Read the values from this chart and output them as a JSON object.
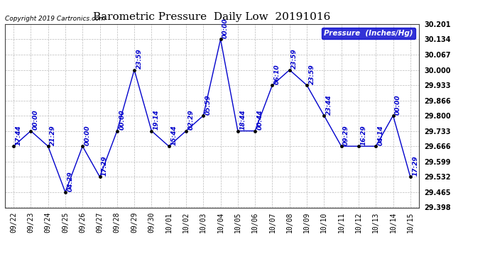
{
  "title": "Barometric Pressure  Daily Low  20191016",
  "copyright": "Copyright 2019 Cartronics.com",
  "legend_label": "Pressure  (Inches/Hg)",
  "background_color": "#ffffff",
  "plot_bg_color": "#ffffff",
  "line_color": "#0000CC",
  "marker_color": "#000000",
  "grid_color": "#bbbbbb",
  "dates": [
    "09/22",
    "09/23",
    "09/24",
    "09/25",
    "09/26",
    "09/27",
    "09/28",
    "09/29",
    "09/30",
    "10/01",
    "10/02",
    "10/03",
    "10/04",
    "10/05",
    "10/06",
    "10/07",
    "10/08",
    "10/09",
    "10/10",
    "10/11",
    "10/12",
    "10/13",
    "10/14",
    "10/15"
  ],
  "values": [
    29.666,
    29.733,
    29.666,
    29.465,
    29.666,
    29.532,
    29.733,
    30.0,
    29.733,
    29.666,
    29.733,
    29.8,
    30.134,
    29.733,
    29.733,
    29.933,
    30.0,
    29.933,
    29.8,
    29.666,
    29.666,
    29.666,
    29.8,
    29.532
  ],
  "times": [
    "17:44",
    "00:00",
    "21:29",
    "04:29",
    "00:00",
    "17:29",
    "00:00",
    "23:59",
    "19:14",
    "15:44",
    "02:29",
    "05:59",
    "00:00",
    "18:44",
    "00:44",
    "06:10",
    "23:59",
    "23:59",
    "23:44",
    "09:29",
    "16:29",
    "04:14",
    "00:00",
    "17:29"
  ],
  "ylim_min": 29.398,
  "ylim_max": 30.201,
  "yticks": [
    29.398,
    29.465,
    29.532,
    29.599,
    29.666,
    29.733,
    29.8,
    29.866,
    29.933,
    30.0,
    30.067,
    30.134,
    30.201
  ],
  "title_fontsize": 11,
  "tick_fontsize": 7,
  "label_fontsize": 6.5,
  "legend_fontsize": 7.5,
  "copyright_fontsize": 6.5
}
